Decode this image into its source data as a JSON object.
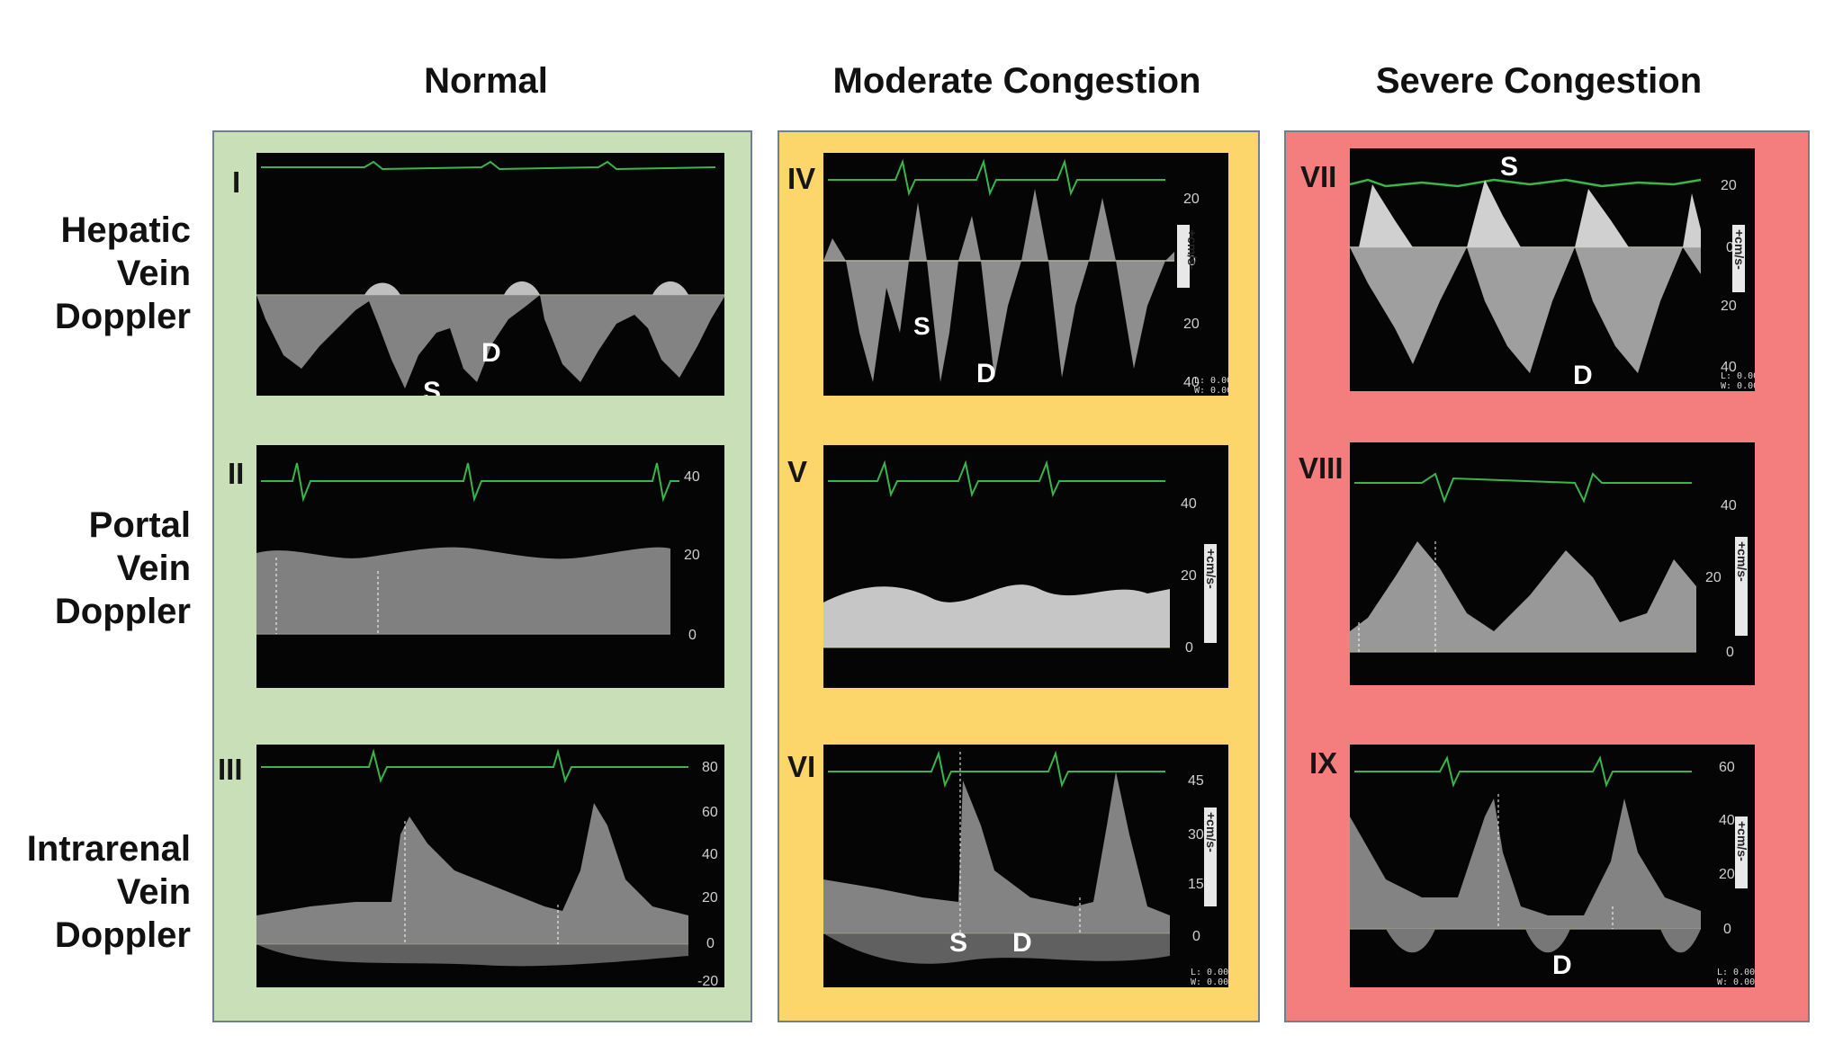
{
  "columns": [
    {
      "title": "Normal",
      "color": "#c9dfb8"
    },
    {
      "title": "Moderate Congestion",
      "color": "#fcd56b"
    },
    {
      "title": "Severe Congestion",
      "color": "#f47e7e"
    }
  ],
  "rows": [
    {
      "label_lines": [
        "Hepatic",
        "Vein",
        "Doppler"
      ]
    },
    {
      "label_lines": [
        "Portal",
        "Vein",
        "Doppler"
      ]
    },
    {
      "label_lines": [
        "Intrarenal",
        "Vein",
        "Doppler"
      ]
    }
  ],
  "panels": {
    "I": {
      "numeral": "I",
      "wave_labels": [
        "S",
        "D"
      ]
    },
    "II": {
      "numeral": "II",
      "scale": [
        "40",
        "20",
        "0"
      ]
    },
    "III": {
      "numeral": "III",
      "scale": [
        "80",
        "60",
        "40",
        "20",
        "0",
        "-20"
      ]
    },
    "IV": {
      "numeral": "IV",
      "wave_labels": [
        "S",
        "D"
      ],
      "scale": [
        "20",
        "0",
        "20",
        "40"
      ],
      "unit": "+cm/s-",
      "readout": [
        "L: 0.00",
        "W: 0.00"
      ]
    },
    "V": {
      "numeral": "V",
      "scale": [
        "40",
        "20",
        "0"
      ],
      "unit": "+cm/s-"
    },
    "VI": {
      "numeral": "VI",
      "wave_labels": [
        "S",
        "D"
      ],
      "scale": [
        "45",
        "30",
        "15",
        "0"
      ],
      "unit": "+cm/s-",
      "readout": [
        "L: 0.00",
        "W: 0.00"
      ]
    },
    "VII": {
      "numeral": "VII",
      "wave_labels": [
        "S",
        "D"
      ],
      "scale": [
        "20",
        "0",
        "20",
        "40"
      ],
      "unit": "+cm/s-",
      "readout": [
        "L: 0.00",
        "W: 0.00"
      ]
    },
    "VIII": {
      "numeral": "VIII",
      "scale": [
        "40",
        "20",
        "0"
      ],
      "unit": "+cm/s-"
    },
    "IX": {
      "numeral": "IX",
      "wave_labels": [
        "D"
      ],
      "scale": [
        "60",
        "40",
        "20",
        "0"
      ],
      "unit": "+cm/s-",
      "readout": [
        "L: 0.00",
        "W: 0.00"
      ]
    }
  }
}
